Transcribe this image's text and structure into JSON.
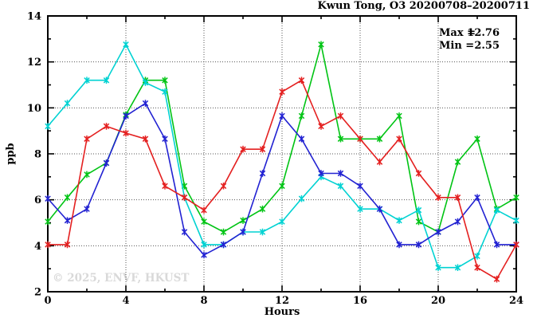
{
  "chart_data": {
    "type": "line",
    "title": "Kwun Tong, O3 20200708–20200711",
    "xlabel": "Hours",
    "ylabel": "ppb",
    "xlim": [
      0,
      24
    ],
    "ylim": [
      2,
      14
    ],
    "xticks_major": [
      0,
      4,
      8,
      12,
      16,
      20,
      24
    ],
    "xticks_minor": [
      2,
      6,
      10,
      14,
      18,
      22
    ],
    "yticks_major": [
      2,
      4,
      6,
      8,
      10,
      12,
      14
    ],
    "yticks_minor": [
      3,
      5,
      7,
      9,
      11,
      13
    ],
    "grid_x": [
      4,
      8,
      12,
      16,
      20
    ],
    "grid_y": [
      4,
      6,
      8,
      10,
      12
    ],
    "grid_on": true,
    "grid_style": "dotted",
    "marker": "star",
    "legend_position": "top-right-inside",
    "annotations": [
      {
        "label": "Max =",
        "value": "12.76"
      },
      {
        "label": "Min =",
        "value": "2.55"
      }
    ],
    "watermark": "© 2025, ENVF, HKUST",
    "x": [
      0,
      1,
      2,
      3,
      4,
      5,
      6,
      7,
      8,
      9,
      10,
      11,
      12,
      13,
      14,
      15,
      16,
      17,
      18,
      19,
      20,
      21,
      22,
      23,
      24
    ],
    "series": [
      {
        "name": "series-green",
        "color": "#00c414",
        "values": [
          5.05,
          6.1,
          7.1,
          7.6,
          9.7,
          11.2,
          11.2,
          6.6,
          5.05,
          4.6,
          5.1,
          5.6,
          6.6,
          9.65,
          12.76,
          8.65,
          8.65,
          8.65,
          9.65,
          5.05,
          4.6,
          7.65,
          8.65,
          5.6,
          6.1
        ]
      },
      {
        "name": "series-cyan",
        "color": "#00d2d2",
        "values": [
          9.2,
          10.2,
          11.2,
          11.2,
          12.76,
          11.1,
          10.7,
          6.1,
          4.05,
          4.05,
          4.6,
          4.6,
          5.05,
          6.05,
          7.0,
          6.6,
          5.6,
          5.6,
          5.1,
          5.55,
          3.05,
          3.05,
          3.55,
          5.55,
          5.1
        ]
      },
      {
        "name": "series-blue",
        "color": "#2222d2",
        "values": [
          6.05,
          5.1,
          5.6,
          7.6,
          9.65,
          10.2,
          8.65,
          4.6,
          3.6,
          4.05,
          4.6,
          7.15,
          9.65,
          8.65,
          7.15,
          7.15,
          6.6,
          5.6,
          4.05,
          4.05,
          4.6,
          5.05,
          6.1,
          4.05,
          4.05
        ]
      },
      {
        "name": "series-red",
        "color": "#e42020",
        "values": [
          4.05,
          4.05,
          8.65,
          9.2,
          8.9,
          8.65,
          6.6,
          6.1,
          5.55,
          6.6,
          8.2,
          8.2,
          10.7,
          11.2,
          9.2,
          9.65,
          8.65,
          7.65,
          8.65,
          7.15,
          6.1,
          6.1,
          3.05,
          2.55,
          4.05
        ]
      }
    ]
  },
  "frame": {
    "background": "#ffffff",
    "axis_color": "#000000",
    "grid_color": "#555555"
  }
}
